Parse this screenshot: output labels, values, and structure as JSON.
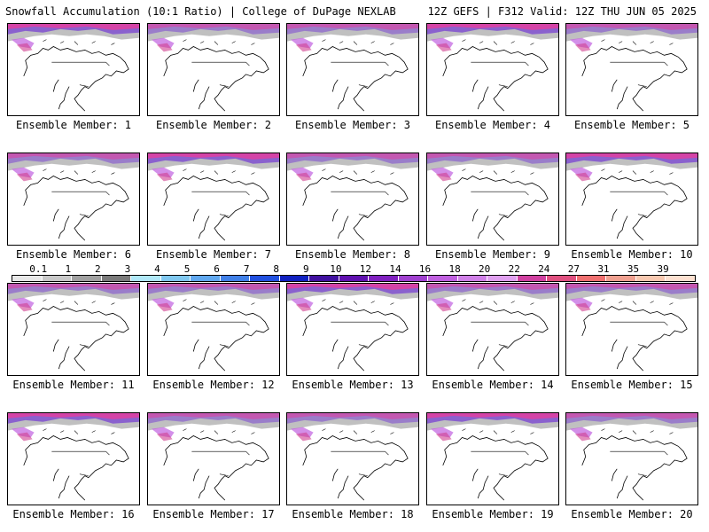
{
  "header": {
    "left": "Snowfall Accumulation (10:1 Ratio) | College of DuPage NEXLAB",
    "right": "12Z GEFS | F312 Valid: 12Z THU JUN 05 2025"
  },
  "members": [
    {
      "label": "Ensemble Member: 1"
    },
    {
      "label": "Ensemble Member: 2"
    },
    {
      "label": "Ensemble Member: 3"
    },
    {
      "label": "Ensemble Member: 4"
    },
    {
      "label": "Ensemble Member: 5"
    },
    {
      "label": "Ensemble Member: 6"
    },
    {
      "label": "Ensemble Member: 7"
    },
    {
      "label": "Ensemble Member: 8"
    },
    {
      "label": "Ensemble Member: 9"
    },
    {
      "label": "Ensemble Member: 10"
    },
    {
      "label": "Ensemble Member: 11"
    },
    {
      "label": "Ensemble Member: 12"
    },
    {
      "label": "Ensemble Member: 13"
    },
    {
      "label": "Ensemble Member: 14"
    },
    {
      "label": "Ensemble Member: 15"
    },
    {
      "label": "Ensemble Member: 16"
    },
    {
      "label": "Ensemble Member: 17"
    },
    {
      "label": "Ensemble Member: 18"
    },
    {
      "label": "Ensemble Member: 19"
    },
    {
      "label": "Ensemble Member: 20"
    }
  ],
  "colorbar": {
    "labels": [
      "0.1",
      "1",
      "2",
      "3",
      "4",
      "5",
      "6",
      "7",
      "8",
      "9",
      "10",
      "12",
      "14",
      "16",
      "18",
      "20",
      "22",
      "24",
      "27",
      "31",
      "35",
      "39"
    ],
    "colors": [
      "#e8e8e8",
      "#c8c8c8",
      "#a0a0a0",
      "#7a7a7a",
      "#b0e8f8",
      "#80c8f0",
      "#60a8f0",
      "#4080e8",
      "#2050e0",
      "#1020c0",
      "#4010a0",
      "#6010b0",
      "#8020c0",
      "#a040d0",
      "#c060e0",
      "#d080e8",
      "#e0a0f0",
      "#d040a0",
      "#e05080",
      "#f07070",
      "#f0a090",
      "#f8c8b0",
      "#fde0d0"
    ]
  }
}
